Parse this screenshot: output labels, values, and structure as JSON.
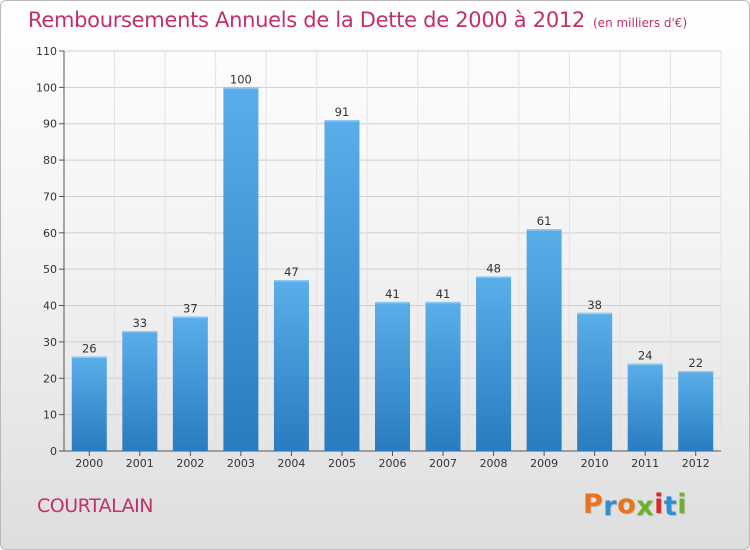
{
  "chart_data": {
    "type": "bar",
    "title": "Remboursements Annuels de la Dette de 2000 à 2012",
    "subtitle": "(en milliers d'€)",
    "categories": [
      "2000",
      "2001",
      "2002",
      "2003",
      "2004",
      "2005",
      "2006",
      "2007",
      "2008",
      "2009",
      "2010",
      "2011",
      "2012"
    ],
    "values": [
      26,
      33,
      37,
      100,
      47,
      91,
      41,
      41,
      48,
      61,
      38,
      24,
      22
    ],
    "ylim": [
      0,
      110
    ],
    "yticks": [
      0,
      10,
      20,
      30,
      40,
      50,
      60,
      70,
      80,
      90,
      100,
      110
    ],
    "grid": true,
    "bar_color": "#3a8fd4"
  },
  "footer": {
    "commune": "COURTALAIN",
    "logo": "Proxiti"
  },
  "colors": {
    "title": "#c0306b",
    "logo": [
      "#e8731a",
      "#2d8fd0",
      "#e8731a",
      "#6ab42d",
      "#d12d2d",
      "#2d8fd0",
      "#6ab42d"
    ]
  }
}
